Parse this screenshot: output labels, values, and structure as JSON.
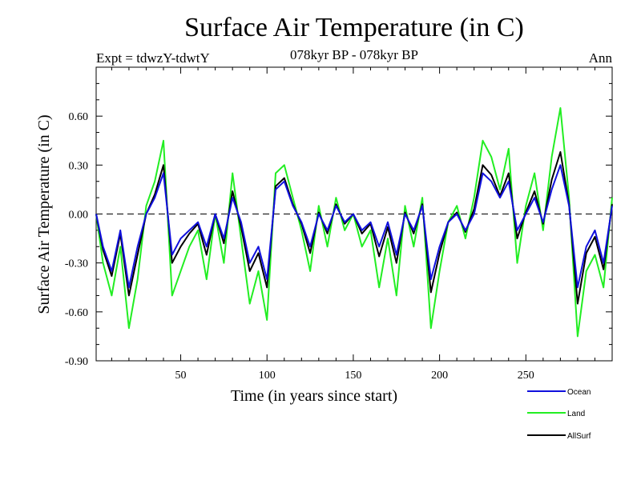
{
  "header": {
    "title": "Surface Air Temperature (in C)",
    "expt": "Expt = tdwzY-tdwtY",
    "subtitle": "078kyr BP - 078kyr BP",
    "period": "Ann"
  },
  "colors": {
    "Ocean": "#1010dd",
    "Land": "#22ee22",
    "AllSurf": "#000000"
  },
  "chart_data": {
    "type": "line",
    "title": "Surface Air Temperature (in C)",
    "xlabel": "Time (in years since start)",
    "ylabel": "Surface Air Temperature (in C)",
    "xlim": [
      1,
      300
    ],
    "ylim": [
      -0.9,
      0.9
    ],
    "xticks": [
      50,
      100,
      150,
      200,
      250
    ],
    "xtick_labels": [
      "50",
      "100",
      "150",
      "200",
      "250"
    ],
    "yticks": [
      -0.9,
      -0.6,
      -0.3,
      0.0,
      0.3,
      0.6
    ],
    "ytick_labels": [
      "-0.90",
      "-0.60",
      "-0.30",
      "0.00",
      "0.30",
      "0.60"
    ],
    "zero_line": "dashed",
    "grid": false,
    "legend_position": "bottom-right, outside plot",
    "x": [
      1,
      5,
      10,
      15,
      20,
      25,
      30,
      35,
      40,
      45,
      50,
      55,
      60,
      65,
      70,
      75,
      80,
      85,
      90,
      95,
      100,
      105,
      110,
      115,
      120,
      125,
      130,
      135,
      140,
      145,
      150,
      155,
      160,
      165,
      170,
      175,
      180,
      185,
      190,
      195,
      200,
      205,
      210,
      215,
      220,
      225,
      230,
      235,
      240,
      245,
      250,
      255,
      260,
      265,
      270,
      275,
      280,
      285,
      290,
      295,
      300
    ],
    "series": [
      {
        "name": "Ocean",
        "values": [
          0.0,
          -0.2,
          -0.35,
          -0.1,
          -0.45,
          -0.2,
          0.0,
          0.1,
          0.25,
          -0.25,
          -0.15,
          -0.1,
          -0.05,
          -0.2,
          0.0,
          -0.15,
          0.1,
          -0.05,
          -0.3,
          -0.2,
          -0.4,
          0.15,
          0.2,
          0.05,
          -0.05,
          -0.2,
          0.0,
          -0.1,
          0.05,
          -0.05,
          0.0,
          -0.1,
          -0.05,
          -0.2,
          -0.05,
          -0.25,
          0.0,
          -0.1,
          0.05,
          -0.4,
          -0.2,
          -0.05,
          0.0,
          -0.1,
          0.0,
          0.25,
          0.2,
          0.1,
          0.2,
          -0.1,
          0.0,
          0.1,
          -0.05,
          0.15,
          0.3,
          0.05,
          -0.45,
          -0.2,
          -0.1,
          -0.3,
          0.05
        ]
      },
      {
        "name": "Land",
        "values": [
          0.0,
          -0.3,
          -0.5,
          -0.2,
          -0.7,
          -0.4,
          0.05,
          0.2,
          0.45,
          -0.5,
          -0.35,
          -0.2,
          -0.1,
          -0.4,
          0.0,
          -0.3,
          0.25,
          -0.15,
          -0.55,
          -0.35,
          -0.65,
          0.25,
          0.3,
          0.1,
          -0.1,
          -0.35,
          0.05,
          -0.2,
          0.1,
          -0.1,
          0.0,
          -0.2,
          -0.1,
          -0.45,
          -0.15,
          -0.5,
          0.05,
          -0.2,
          0.1,
          -0.7,
          -0.35,
          -0.05,
          0.05,
          -0.15,
          0.1,
          0.45,
          0.35,
          0.15,
          0.4,
          -0.3,
          0.05,
          0.25,
          -0.1,
          0.35,
          0.65,
          0.1,
          -0.75,
          -0.35,
          -0.25,
          -0.45,
          0.1
        ]
      },
      {
        "name": "AllSurf",
        "values": [
          0.0,
          -0.22,
          -0.38,
          -0.12,
          -0.5,
          -0.25,
          0.0,
          0.12,
          0.3,
          -0.3,
          -0.2,
          -0.12,
          -0.06,
          -0.25,
          0.0,
          -0.18,
          0.14,
          -0.08,
          -0.35,
          -0.24,
          -0.45,
          0.17,
          0.22,
          0.06,
          -0.06,
          -0.24,
          0.01,
          -0.12,
          0.06,
          -0.06,
          0.0,
          -0.12,
          -0.06,
          -0.26,
          -0.08,
          -0.3,
          0.01,
          -0.12,
          0.06,
          -0.48,
          -0.24,
          -0.05,
          0.01,
          -0.11,
          0.03,
          0.3,
          0.24,
          0.11,
          0.25,
          -0.15,
          0.01,
          0.14,
          -0.06,
          0.21,
          0.38,
          0.06,
          -0.55,
          -0.24,
          -0.14,
          -0.34,
          0.06
        ]
      }
    ]
  }
}
